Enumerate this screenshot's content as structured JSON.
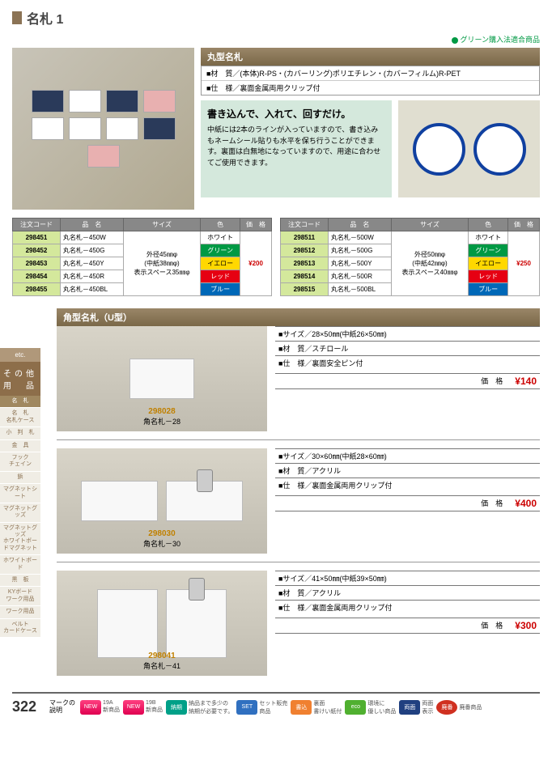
{
  "page": {
    "title": "名札 1",
    "green_note": "グリーン購入法適合商品",
    "page_number": "322",
    "footer_label": "マークの\n説明"
  },
  "round": {
    "header": "丸型名札",
    "spec1": "■材　質／(本体)R-PS・(カバーリング)ポリエチレン・(カバーフィルム)R-PET",
    "spec2": "■仕　様／裏面金属両用クリップ付",
    "desc_title": "書き込んで、入れて、回すだけ。",
    "desc_body": "中紙には2本のラインが入っていますので、書き込みもネームシール貼りも水平を保ち行うことができます。裏面は白無地になっていますので、用途に合わせてご使用できます。"
  },
  "table_headers": {
    "code": "注文コード",
    "name": "品　名",
    "size": "サイズ",
    "color": "色",
    "price": "価　格"
  },
  "table1": {
    "size": "外径45㎜φ\n(中紙38㎜φ)\n表示スペース35㎜φ",
    "price": "¥200",
    "rows": [
      {
        "code": "298451",
        "name": "丸名札－450W",
        "color": "ホワイト",
        "cls": "color-white"
      },
      {
        "code": "298452",
        "name": "丸名札－450G",
        "color": "グリーン",
        "cls": "color-green"
      },
      {
        "code": "298453",
        "name": "丸名札－450Y",
        "color": "イエロー",
        "cls": "color-yellow"
      },
      {
        "code": "298454",
        "name": "丸名札－450R",
        "color": "レッド",
        "cls": "color-red"
      },
      {
        "code": "298455",
        "name": "丸名札－450BL",
        "color": "ブルー",
        "cls": "color-blue"
      }
    ]
  },
  "table2": {
    "size": "外径50㎜φ\n(中紙42㎜φ)\n表示スペース40㎜φ",
    "price": "¥250",
    "rows": [
      {
        "code": "298511",
        "name": "丸名札－500W",
        "color": "ホワイト",
        "cls": "color-white"
      },
      {
        "code": "298512",
        "name": "丸名札－500G",
        "color": "グリーン",
        "cls": "color-green"
      },
      {
        "code": "298513",
        "name": "丸名札－500Y",
        "color": "イエロー",
        "cls": "color-yellow"
      },
      {
        "code": "298514",
        "name": "丸名札－500R",
        "color": "レッド",
        "cls": "color-red"
      },
      {
        "code": "298515",
        "name": "丸名札－500BL",
        "color": "ブルー",
        "cls": "color-blue"
      }
    ]
  },
  "sidebar": {
    "etc": "etc.",
    "main": "その他\n用　品",
    "items": [
      "名　札",
      "名　札\n名札ケース",
      "小　判　札",
      "金　具",
      "フック\nチェイン",
      "鋲",
      "マグネットシート",
      "マグネットグッズ",
      "マグネットグッズ\nホワイトボードマグネット",
      "ホワイトボード",
      "黒　板",
      "KYボード\nワーク用品",
      "ワーク用品",
      "ベルト\nカードケース"
    ]
  },
  "u_type": {
    "header": "角型名札（U型）",
    "items": [
      {
        "code": "298028",
        "name": "角名札－28",
        "cls": "sz28",
        "specs": [
          "■サイズ／28×50㎜(中紙26×50㎜)",
          "■材　質／スチロール",
          "■仕　様／裏面安全ピン付"
        ],
        "price_label": "価　格",
        "price": "¥140"
      },
      {
        "code": "298030",
        "name": "角名札－30",
        "cls": "sz30",
        "specs": [
          "■サイズ／30×60㎜(中紙28×60㎜)",
          "■材　質／アクリル",
          "■仕　様／裏面金属両用クリップ付"
        ],
        "price_label": "価　格",
        "price": "¥400"
      },
      {
        "code": "298041",
        "name": "角名札－41",
        "cls": "sz41",
        "specs": [
          "■サイズ／41×50㎜(中紙39×50㎜)",
          "■材　質／アクリル",
          "■仕　様／裏面金属両用クリップ付"
        ],
        "price_label": "価　格",
        "price": "¥300"
      }
    ]
  },
  "footer_badges": [
    {
      "cls": "fb-new",
      "label": "NEW",
      "text": "19A\n新商品"
    },
    {
      "cls": "fb-new",
      "label": "NEW",
      "text": "19B\n新商品"
    },
    {
      "cls": "fb-teal",
      "label": "納期",
      "text": "納品まで多少の\n納期が必要です。"
    },
    {
      "cls": "fb-blue",
      "label": "SET",
      "text": "セット販売\n商品"
    },
    {
      "cls": "fb-orange",
      "label": "書込",
      "text": "裏面\n書けい紙付"
    },
    {
      "cls": "fb-green",
      "label": "eco",
      "text": "環境に\n優しい商品"
    },
    {
      "cls": "fb-navy",
      "label": "両面",
      "text": "両面\n表示"
    },
    {
      "cls": "fb-red",
      "label": "廃番",
      "text": "廃番商品"
    }
  ]
}
